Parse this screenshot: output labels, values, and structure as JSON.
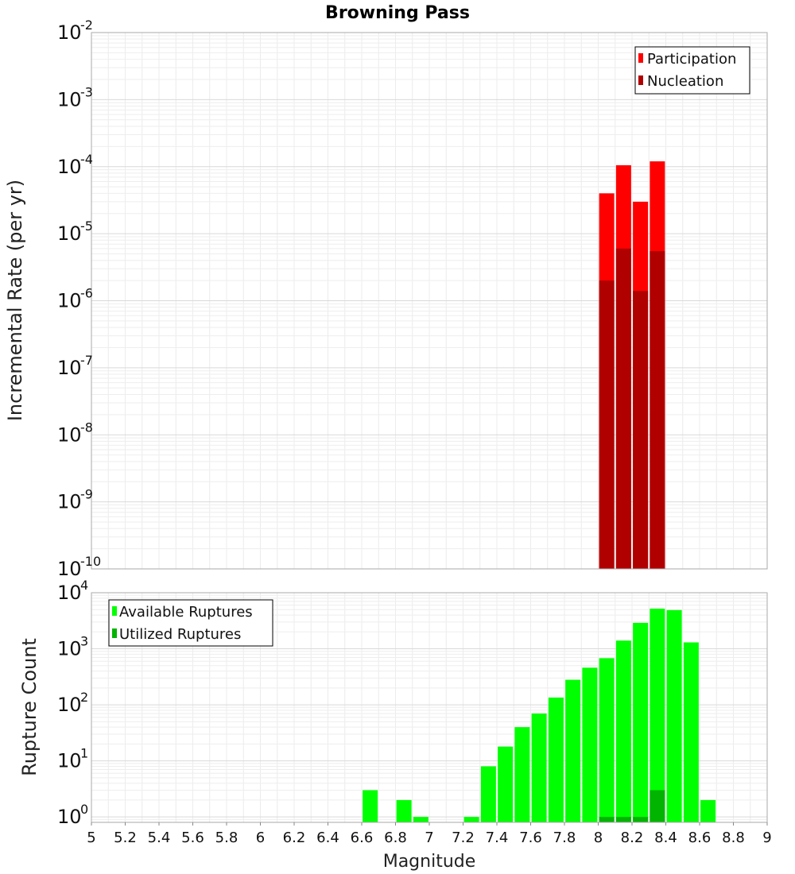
{
  "chart_data": [
    {
      "panel": "top",
      "type": "bar",
      "title": "Browning Pass",
      "xlabel": "",
      "ylabel": "Incremental Rate (per yr)",
      "yscale": "log",
      "ylim": [
        1e-10,
        0.01
      ],
      "xlim": [
        5,
        9
      ],
      "grid": true,
      "legend_position": "top-right",
      "y_tick_labels": [
        {
          "base": "10",
          "exp": "-10"
        },
        {
          "base": "10",
          "exp": "-9"
        },
        {
          "base": "10",
          "exp": "-8"
        },
        {
          "base": "10",
          "exp": "-7"
        },
        {
          "base": "10",
          "exp": "-6"
        },
        {
          "base": "10",
          "exp": "-5"
        },
        {
          "base": "10",
          "exp": "-4"
        },
        {
          "base": "10",
          "exp": "-3"
        },
        {
          "base": "10",
          "exp": "-2"
        }
      ],
      "series": [
        {
          "name": "Participation",
          "color": "#ff0000",
          "x": [
            8.05,
            8.15,
            8.25,
            8.35
          ],
          "values": [
            4e-05,
            0.000105,
            3e-05,
            0.00012
          ]
        },
        {
          "name": "Nucleation",
          "color": "#b00000",
          "x": [
            8.05,
            8.15,
            8.25,
            8.35
          ],
          "values": [
            2e-06,
            6e-06,
            1.4e-06,
            5.5e-06
          ]
        }
      ]
    },
    {
      "panel": "bottom",
      "type": "bar",
      "title": "",
      "xlabel": "Magnitude",
      "ylabel": "Rupture Count",
      "yscale": "log",
      "ylim": [
        0.8,
        10000
      ],
      "xlim": [
        5,
        9
      ],
      "grid": true,
      "legend_position": "top-left",
      "x_tick_labels": [
        "5",
        "5.2",
        "5.4",
        "5.6",
        "5.8",
        "6",
        "6.2",
        "6.4",
        "6.6",
        "6.8",
        "7",
        "7.2",
        "7.4",
        "7.6",
        "7.8",
        "8",
        "8.2",
        "8.4",
        "8.6",
        "8.8",
        "9"
      ],
      "y_tick_labels": [
        {
          "base": "10",
          "exp": "0"
        },
        {
          "base": "10",
          "exp": "1"
        },
        {
          "base": "10",
          "exp": "2"
        },
        {
          "base": "10",
          "exp": "3"
        },
        {
          "base": "10",
          "exp": "4"
        }
      ],
      "series": [
        {
          "name": "Available Ruptures",
          "color": "#00ff00",
          "x": [
            6.65,
            6.85,
            6.95,
            7.25,
            7.35,
            7.45,
            7.55,
            7.65,
            7.75,
            7.85,
            7.95,
            8.05,
            8.15,
            8.25,
            8.35,
            8.45,
            8.55,
            8.65
          ],
          "values": [
            3,
            2,
            1,
            1,
            8,
            18,
            40,
            70,
            135,
            280,
            460,
            680,
            1400,
            2900,
            5200,
            4900,
            1300,
            2
          ]
        },
        {
          "name": "Utilized Ruptures",
          "color": "#00b400",
          "x": [
            8.05,
            8.15,
            8.25,
            8.35
          ],
          "values": [
            1,
            1,
            1,
            3
          ]
        }
      ]
    }
  ]
}
